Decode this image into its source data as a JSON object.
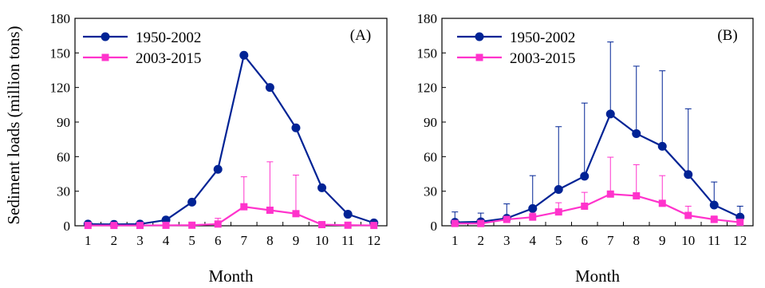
{
  "chart_data": [
    {
      "type": "line",
      "panel_label": "(A)",
      "xlabel": "Month",
      "ylabel": "Sediment loads (million tons)",
      "x": [
        1,
        2,
        3,
        4,
        5,
        6,
        7,
        8,
        9,
        10,
        11,
        12
      ],
      "ylim": [
        0,
        180
      ],
      "yticks": [
        0,
        30,
        60,
        90,
        120,
        150,
        180
      ],
      "legend_position": "top-left",
      "grid": false,
      "series": [
        {
          "name": "1950-2002",
          "color": "#002395",
          "marker": "circle",
          "values": [
            1.5,
            1.2,
            1.5,
            5,
            20.5,
            49,
            148,
            120,
            85,
            33,
            10,
            2.5
          ]
        },
        {
          "name": "2003-2015",
          "color": "#ff33cc",
          "marker": "square",
          "values": [
            0.3,
            0.3,
            0.3,
            0.4,
            0.5,
            1.5,
            16.5,
            13.5,
            10.5,
            1,
            0.5,
            0.3
          ],
          "error": [
            0,
            0,
            0,
            0,
            0,
            5,
            26,
            42,
            33.5,
            0,
            0,
            0
          ]
        }
      ]
    },
    {
      "type": "line",
      "panel_label": "(B)",
      "xlabel": "Month",
      "ylabel": "",
      "x": [
        1,
        2,
        3,
        4,
        5,
        6,
        7,
        8,
        9,
        10,
        11,
        12
      ],
      "ylim": [
        0,
        180
      ],
      "yticks": [
        0,
        30,
        60,
        90,
        120,
        150,
        180
      ],
      "legend_position": "top-left",
      "grid": false,
      "series": [
        {
          "name": "1950-2002",
          "color": "#002395",
          "marker": "circle",
          "values": [
            3,
            3.5,
            6.5,
            15,
            31.5,
            43,
            97,
            80,
            69,
            44.5,
            18,
            7.5
          ],
          "error": [
            9,
            7.5,
            12.5,
            28.5,
            54.5,
            63.5,
            62.5,
            58.5,
            65.5,
            57,
            20,
            9.5
          ]
        },
        {
          "name": "2003-2015",
          "color": "#ff33cc",
          "marker": "square",
          "values": [
            2,
            2,
            5.5,
            7.5,
            12,
            17,
            27.5,
            26,
            19.5,
            9,
            5.5,
            3
          ],
          "error": [
            1,
            1,
            1.5,
            3.5,
            8,
            12,
            32,
            27,
            24,
            8,
            3,
            1.5
          ]
        }
      ]
    }
  ]
}
